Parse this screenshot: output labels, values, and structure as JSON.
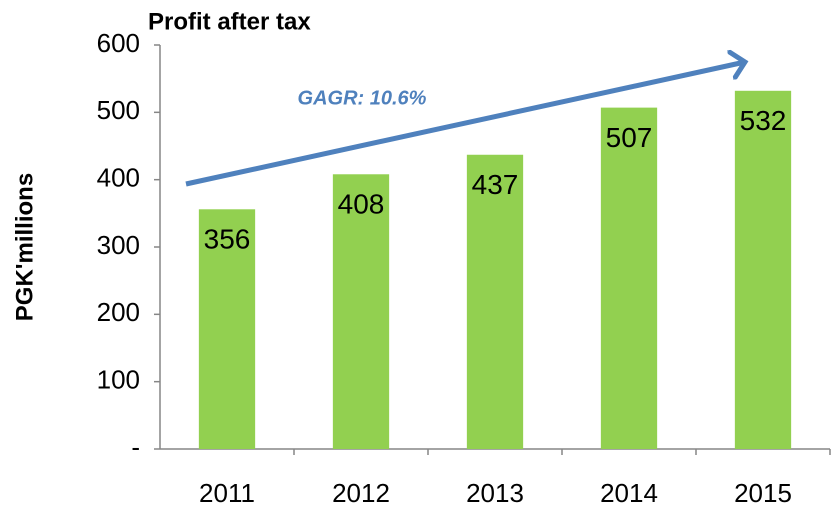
{
  "chart_data": {
    "type": "bar",
    "title": "Profit after tax",
    "y_label": "PGK'millions",
    "annotation": "GAGR: 10.6%",
    "categories": [
      "2011",
      "2012",
      "2013",
      "2014",
      "2015"
    ],
    "values": [
      356,
      408,
      437,
      507,
      532
    ],
    "color": "#92d050",
    "ylim": [
      0,
      600
    ],
    "yticks": [
      {
        "value": 0,
        "label": "-"
      },
      100,
      200,
      300,
      400,
      500,
      600
    ],
    "grid": false
  }
}
